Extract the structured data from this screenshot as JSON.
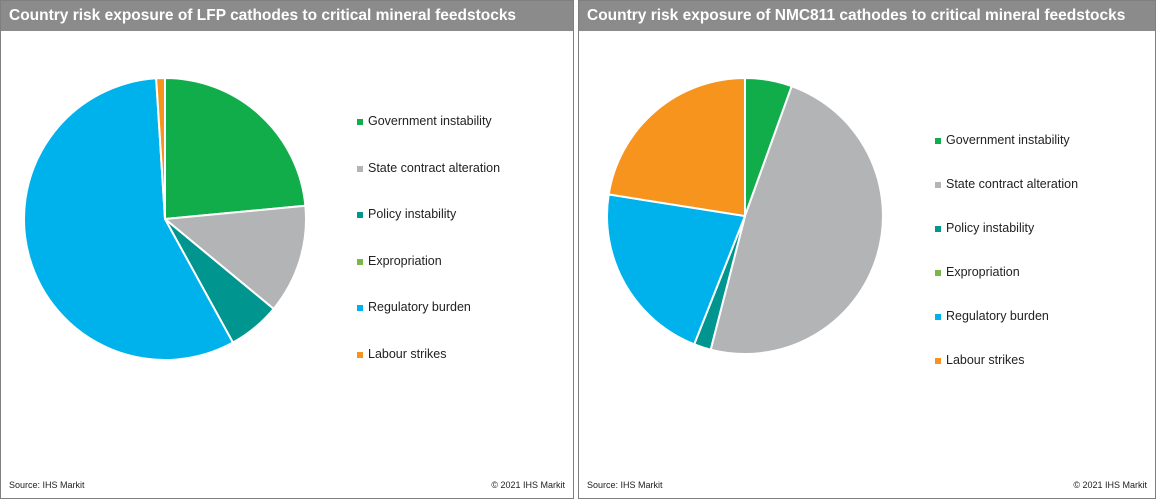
{
  "footer": {
    "source": "Source: IHS Markit",
    "copyright": "© 2021  IHS Markit"
  },
  "colors": {
    "Government instability": "#12ad4b",
    "State contract alteration": "#b3b4b6",
    "Policy instability": "#00958f",
    "Expropriation": "#7ab648",
    "Regulatory burden": "#00b2ec",
    "Labour strikes": "#f7941d"
  },
  "chart_data": [
    {
      "type": "pie",
      "title": "Country risk exposure of LFP cathodes to critical mineral feedstocks",
      "legend_position": "right",
      "labels": [
        "Government instability",
        "State contract alteration",
        "Policy instability",
        "Expropriation",
        "Regulatory burden",
        "Labour strikes"
      ],
      "values": [
        23.5,
        12.5,
        6,
        0,
        57,
        1
      ]
    },
    {
      "type": "pie",
      "title": "Country risk exposure of NMC811 cathodes to critical mineral feedstocks",
      "legend_position": "right",
      "labels": [
        "Government instability",
        "State contract alteration",
        "Policy instability",
        "Expropriation",
        "Regulatory burden",
        "Labour strikes"
      ],
      "values": [
        5.5,
        48.5,
        2,
        0,
        21.5,
        22.5
      ]
    }
  ]
}
